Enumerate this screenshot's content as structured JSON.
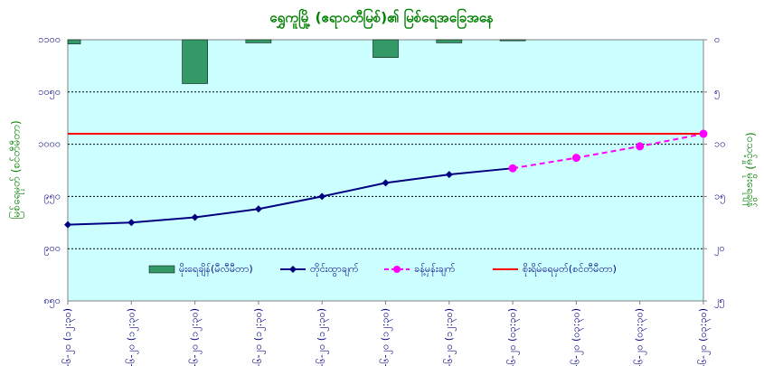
{
  "chart_data": {
    "type": "combo",
    "title": "ရွှေကူမြို့ (ဧရာဝတီမြစ်)၏ မြစ်ရေအခြေအနေ",
    "y_label": "မြစ်ရေမှတ် (စင်တီမီတာ)",
    "y2_label": "(ဝသင့်မှု) မိုးရေချိန်",
    "categories": [
      "၉-၆-၂၀ (၁၂:၃၀)",
      "၁၀-၆-၂၀ (၁၂:၃၀)",
      "၁၁-၆-၂၀ (၁၂:၃၀)",
      "၁၂-၆-၂၀ (၁၂:၃၀)",
      "၁၃-၆-၂၀ (၁၂:၃၀)",
      "၁၄-၆-၂၀ (၁၂:၃၀)",
      "၁၅-၆-၂၀ (၁၂:၃၀)",
      "၁၆-၆-၂၀ (၀၃:၃၀)",
      "၁၇-၆-၂၀ (၀၃:၃၀)",
      "၁၈-၆-၂၀ (၀၃:၃၀)",
      "၁၉-၆-၂၀ (၀၃:၃၀)"
    ],
    "series": [
      {
        "name": "မိုးရေချိန်(မီလီမီတာ)",
        "type": "bar",
        "axis": "y2",
        "color": "#339966",
        "values": [
          0.4,
          0,
          4.2,
          0.3,
          0,
          1.7,
          0.3,
          0.1,
          null,
          null,
          null
        ]
      },
      {
        "name": "တိုင်းထွာချက်",
        "type": "line",
        "color": "#000080",
        "dashed": false,
        "values": [
          923,
          925,
          930,
          938,
          950,
          963,
          971,
          977,
          null,
          null,
          null
        ]
      },
      {
        "name": "ခန့်မှန်းချက်",
        "type": "line",
        "color": "#ff00ff",
        "dashed": true,
        "values": [
          null,
          null,
          null,
          null,
          null,
          null,
          null,
          977,
          987,
          998,
          1010
        ]
      }
    ],
    "reference_line": {
      "name": "စိုးရိမ်ရေမှတ်(စင်တီမီတာ)",
      "value": 1010,
      "color": "#ff0000"
    },
    "ylim": [
      850,
      1100
    ],
    "yticks": [
      {
        "value": 850,
        "label": "၈၅၀"
      },
      {
        "value": 900,
        "label": "၉၀၀"
      },
      {
        "value": 950,
        "label": "၉၅၀"
      },
      {
        "value": 1000,
        "label": "၁၀၀၀"
      },
      {
        "value": 1050,
        "label": "၁၀၅၀"
      },
      {
        "value": 1100,
        "label": "၁၁၀၀"
      }
    ],
    "y2lim": [
      25,
      0
    ],
    "y2ticks": [
      {
        "value": 0,
        "label": "၀"
      },
      {
        "value": 5,
        "label": "၅"
      },
      {
        "value": 10,
        "label": "၁၀"
      },
      {
        "value": 15,
        "label": "၁၅"
      },
      {
        "value": 20,
        "label": "၂၀"
      },
      {
        "value": 25,
        "label": "၂၅"
      }
    ],
    "grid": true
  }
}
